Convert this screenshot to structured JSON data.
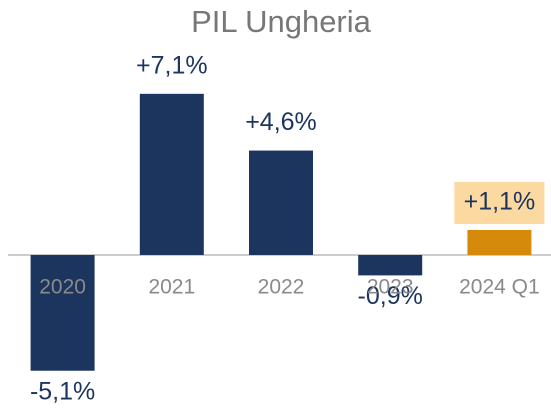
{
  "chart_data": {
    "type": "bar",
    "title": "PIL Ungheria",
    "categories": [
      "2020",
      "2021",
      "2022",
      "2023",
      "2024 Q1"
    ],
    "values": [
      -5.1,
      7.1,
      4.6,
      -0.9,
      1.1
    ],
    "value_labels": [
      "-5,1%",
      "+7,1%",
      "+4,6%",
      "-0,9%",
      "+1,1%"
    ],
    "colors": [
      "#1c355e",
      "#1c355e",
      "#1c355e",
      "#1c355e",
      "#d68a0c"
    ],
    "highlight_color": "#fcd9a0",
    "ylim": [
      -6.5,
      8
    ]
  }
}
